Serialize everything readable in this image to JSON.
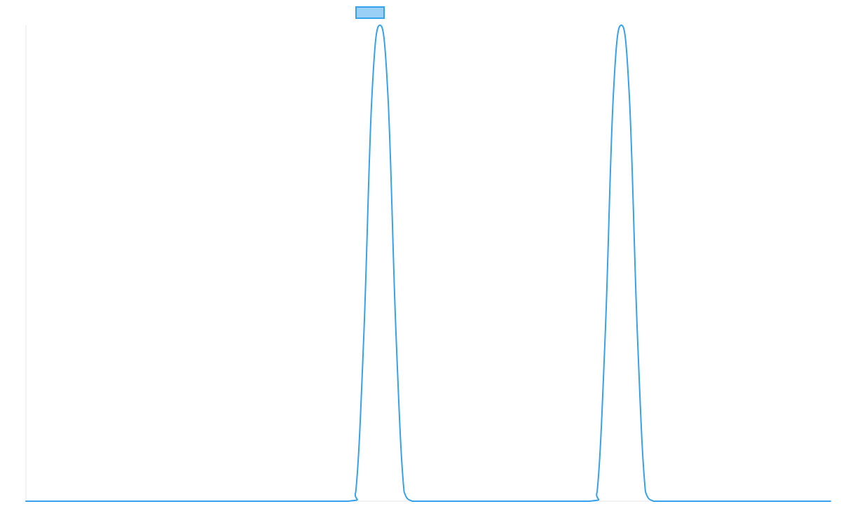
{
  "chart_data": {
    "type": "line",
    "title": "",
    "xlabel": "",
    "ylabel": "",
    "grid": false,
    "legend": "top-center",
    "x": [
      0,
      10,
      20,
      30,
      40,
      41,
      42,
      43,
      44,
      45,
      46,
      47,
      48,
      49,
      50,
      60,
      70,
      71,
      72,
      73,
      74,
      75,
      76,
      77,
      78,
      79,
      80,
      90,
      100
    ],
    "xlim": [
      0,
      100
    ],
    "ylim": [
      0,
      1
    ],
    "series": [
      {
        "name": "",
        "color": "#36a2eb",
        "fill_color": "#9ad0f5",
        "values": [
          0,
          0,
          0,
          0,
          0,
          0.02,
          0.35,
          0.85,
          1,
          0.85,
          0.35,
          0.02,
          0,
          0,
          0,
          0,
          0,
          0.02,
          0.35,
          0.85,
          1,
          0.85,
          0.35,
          0.02,
          0,
          0,
          0,
          0,
          0
        ]
      }
    ]
  }
}
